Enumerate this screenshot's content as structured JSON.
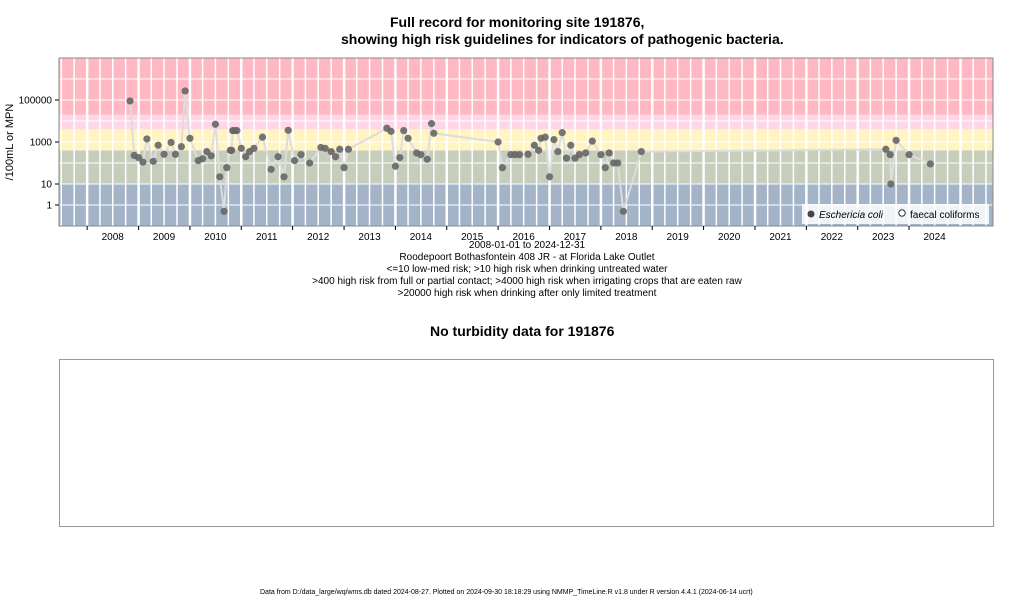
{
  "title": {
    "line1": "Full record for monitoring site 191876,",
    "line2": "showing high risk guidelines for indicators of pathogenic bacteria."
  },
  "chart_data": {
    "type": "scatter",
    "title": "Full record for monitoring site 191876, showing high risk guidelines for indicators of pathogenic bacteria.",
    "ylabel": "/100mL or MPN",
    "yscale": "log",
    "ylim": [
      0.1,
      10000000
    ],
    "xlim": [
      "2007-06-15",
      "2025-08-20"
    ],
    "x_ticks": [
      "2008",
      "2009",
      "2010",
      "2011",
      "2012",
      "2013",
      "2014",
      "2015",
      "2016",
      "2017",
      "2018",
      "2019",
      "2020",
      "2021",
      "2022",
      "2023",
      "2024"
    ],
    "y_ticks": [
      {
        "value": 1,
        "label": "1"
      },
      {
        "value": 10,
        "label": "10"
      },
      {
        "value": 1000,
        "label": "1000"
      },
      {
        "value": 100000,
        "label": "100000"
      }
    ],
    "risk_bands": [
      {
        "from": 0.1,
        "to": 10,
        "color": "#a3b3c8"
      },
      {
        "from": 10,
        "to": 400,
        "color": "#c6cebb"
      },
      {
        "from": 400,
        "to": 4000,
        "color": "#fff4c2"
      },
      {
        "from": 4000,
        "to": 20000,
        "color": "#ffd6e8"
      },
      {
        "from": 20000,
        "to": 10000000,
        "color": "#ffb7c3"
      }
    ],
    "colors": {
      "line": "#dddddd",
      "point": "#666666",
      "grid": "#ffffff"
    },
    "legend": {
      "position": "bottom-right",
      "entries": [
        {
          "label": "Eschericia coli",
          "marker": "filled"
        },
        {
          "label": "faecal coliforms",
          "marker": "open"
        }
      ]
    },
    "series": [
      {
        "name": "Eschericia coli",
        "points": [
          [
            "2008-11-01",
            90000
          ],
          [
            "2008-12-01",
            230
          ],
          [
            "2009-01-01",
            180
          ],
          [
            "2009-02-01",
            110
          ],
          [
            "2009-03-01",
            1400
          ],
          [
            "2009-04-15",
            120
          ],
          [
            "2009-05-20",
            700
          ],
          [
            "2009-07-01",
            260
          ],
          [
            "2009-08-20",
            950
          ],
          [
            "2009-09-20",
            260
          ],
          [
            "2009-11-01",
            600
          ],
          [
            "2009-11-28",
            270000
          ],
          [
            "2010-01-01",
            1500
          ],
          [
            "2010-03-01",
            130
          ],
          [
            "2010-04-01",
            160
          ],
          [
            "2010-05-01",
            350
          ],
          [
            "2010-06-01",
            220
          ],
          [
            "2010-07-01",
            7000
          ],
          [
            "2010-08-01",
            22
          ],
          [
            "2010-09-01",
            0.5
          ],
          [
            "2010-09-20",
            60
          ],
          [
            "2010-10-15",
            400
          ],
          [
            "2010-10-25",
            400
          ],
          [
            "2010-11-01",
            3500
          ],
          [
            "2010-11-15",
            3500
          ],
          [
            "2010-12-01",
            3500
          ],
          [
            "2011-01-01",
            500
          ],
          [
            "2011-02-01",
            200
          ],
          [
            "2011-03-01",
            350
          ],
          [
            "2011-04-01",
            500
          ],
          [
            "2011-06-01",
            1700
          ],
          [
            "2011-08-01",
            50
          ],
          [
            "2011-09-20",
            200
          ],
          [
            "2011-11-01",
            22
          ],
          [
            "2011-12-01",
            3600
          ],
          [
            "2012-01-15",
            130
          ],
          [
            "2012-03-01",
            250
          ],
          [
            "2012-05-01",
            100
          ],
          [
            "2012-07-20",
            550
          ],
          [
            "2012-08-20",
            500
          ],
          [
            "2012-10-01",
            350
          ],
          [
            "2012-11-01",
            200
          ],
          [
            "2012-12-01",
            450
          ],
          [
            "2013-01-01",
            60
          ],
          [
            "2013-02-01",
            450
          ],
          [
            "2013-11-01",
            4500
          ],
          [
            "2013-12-01",
            3200
          ],
          [
            "2014-01-01",
            70
          ],
          [
            "2014-02-01",
            180
          ],
          [
            "2014-03-01",
            3500
          ],
          [
            "2014-04-01",
            1500
          ],
          [
            "2014-06-01",
            300
          ],
          [
            "2014-07-01",
            250
          ],
          [
            "2014-08-15",
            150
          ],
          [
            "2014-09-15",
            7500
          ],
          [
            "2014-10-01",
            2600
          ],
          [
            "2016-01-01",
            1000
          ],
          [
            "2016-02-01",
            60
          ],
          [
            "2016-04-01",
            250
          ],
          [
            "2016-05-01",
            250
          ],
          [
            "2016-06-01",
            250
          ],
          [
            "2016-08-01",
            260
          ],
          [
            "2016-09-15",
            700
          ],
          [
            "2016-10-15",
            400
          ],
          [
            "2016-11-01",
            1500
          ],
          [
            "2016-12-01",
            1700
          ],
          [
            "2017-01-01",
            22
          ],
          [
            "2017-02-01",
            1300
          ],
          [
            "2017-03-01",
            350
          ],
          [
            "2017-04-01",
            2800
          ],
          [
            "2017-05-01",
            170
          ],
          [
            "2017-06-01",
            700
          ],
          [
            "2017-07-01",
            170
          ],
          [
            "2017-08-01",
            250
          ],
          [
            "2017-09-15",
            300
          ],
          [
            "2017-11-01",
            1100
          ],
          [
            "2018-01-01",
            250
          ],
          [
            "2018-02-01",
            60
          ],
          [
            "2018-03-01",
            300
          ],
          [
            "2018-04-01",
            100
          ],
          [
            "2018-05-01",
            100
          ],
          [
            "2018-06-10",
            0.5
          ],
          [
            "2018-10-15",
            350
          ],
          [
            "2023-07-20",
            450
          ],
          [
            "2023-08-20",
            250
          ],
          [
            "2023-08-25",
            10
          ],
          [
            "2023-10-01",
            1200
          ],
          [
            "2024-01-01",
            250
          ],
          [
            "2024-06-01",
            90
          ]
        ]
      }
    ]
  },
  "xaxis_caption": {
    "range": "2008-01-01 to 2024-12-31",
    "site": "Roodepoort Bothasfontein 408 JR - at Florida Lake Outlet",
    "risk1": "<=10 low-med risk; >10 high risk when drinking untreated water",
    "risk2": ">400 high risk from full or partial contact; >4000 high risk when irrigating crops that are eaten raw",
    "risk3": ">20000 high risk when drinking after only limited treatment"
  },
  "turbidity": {
    "title": "No turbidity data for 191876"
  },
  "footer": "Data from D:/data_large/wq/wms.db dated 2024-08-27. Plotted on 2024-09-30 18:18:29 using NMMP_TimeLine.R v1.8 under R version 4.4.1 (2024-06-14 ucrt)"
}
